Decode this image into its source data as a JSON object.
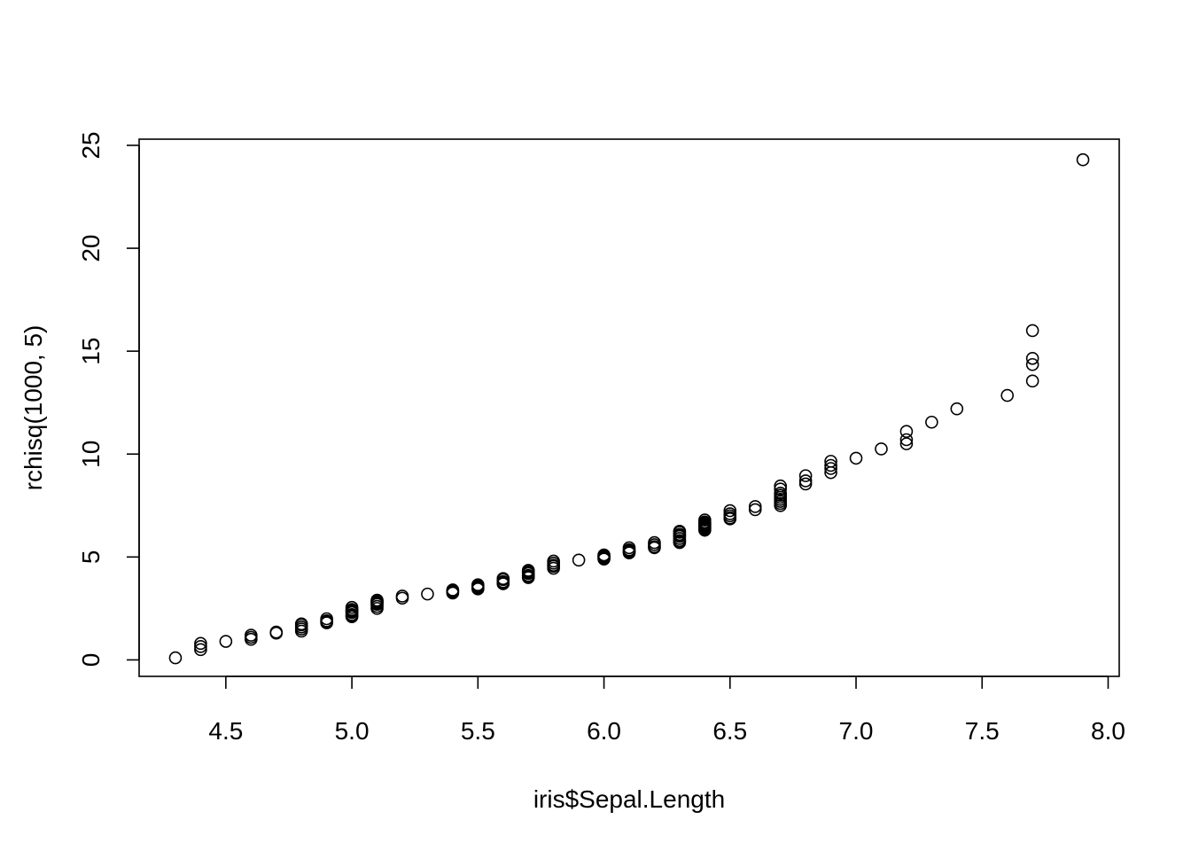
{
  "chart_data": {
    "type": "scatter",
    "title": "",
    "xlabel": "iris$Sepal.Length",
    "ylabel": "rchisq(1000, 5)",
    "xlim": [
      4.156,
      8.044
    ],
    "ylim": [
      -0.8,
      25.3
    ],
    "xticks": [
      "4.5",
      "5.0",
      "5.5",
      "6.0",
      "6.5",
      "7.0",
      "7.5",
      "8.0"
    ],
    "yticks": [
      "0",
      "5",
      "10",
      "15",
      "20",
      "25"
    ],
    "grid": false,
    "marker": "open-circle",
    "points": [
      [
        4.3,
        0.1
      ],
      [
        4.4,
        0.5
      ],
      [
        4.4,
        0.65
      ],
      [
        4.4,
        0.8
      ],
      [
        4.5,
        0.9
      ],
      [
        4.6,
        1.0
      ],
      [
        4.6,
        1.1
      ],
      [
        4.6,
        1.2
      ],
      [
        4.7,
        1.3
      ],
      [
        4.7,
        1.35
      ],
      [
        4.8,
        1.4
      ],
      [
        4.8,
        1.5
      ],
      [
        4.8,
        1.6
      ],
      [
        4.8,
        1.7
      ],
      [
        4.8,
        1.75
      ],
      [
        4.9,
        1.8
      ],
      [
        4.9,
        1.85
      ],
      [
        4.9,
        1.9
      ],
      [
        4.9,
        2.0
      ],
      [
        5.0,
        2.1
      ],
      [
        5.0,
        2.15
      ],
      [
        5.0,
        2.2
      ],
      [
        5.0,
        2.3
      ],
      [
        5.0,
        2.35
      ],
      [
        5.0,
        2.4
      ],
      [
        5.0,
        2.45
      ],
      [
        5.0,
        2.55
      ],
      [
        5.1,
        2.5
      ],
      [
        5.1,
        2.6
      ],
      [
        5.1,
        2.7
      ],
      [
        5.1,
        2.75
      ],
      [
        5.1,
        2.8
      ],
      [
        5.1,
        2.85
      ],
      [
        5.1,
        2.9
      ],
      [
        5.2,
        3.0
      ],
      [
        5.2,
        3.1
      ],
      [
        5.3,
        3.2
      ],
      [
        5.4,
        3.25
      ],
      [
        5.4,
        3.3
      ],
      [
        5.4,
        3.35
      ],
      [
        5.4,
        3.4
      ],
      [
        5.5,
        3.45
      ],
      [
        5.5,
        3.5
      ],
      [
        5.5,
        3.55
      ],
      [
        5.5,
        3.6
      ],
      [
        5.5,
        3.65
      ],
      [
        5.6,
        3.7
      ],
      [
        5.6,
        3.75
      ],
      [
        5.6,
        3.8
      ],
      [
        5.6,
        3.9
      ],
      [
        5.6,
        3.95
      ],
      [
        5.7,
        4.0
      ],
      [
        5.7,
        4.05
      ],
      [
        5.7,
        4.1
      ],
      [
        5.7,
        4.2
      ],
      [
        5.7,
        4.25
      ],
      [
        5.7,
        4.3
      ],
      [
        5.7,
        4.35
      ],
      [
        5.8,
        4.45
      ],
      [
        5.8,
        4.55
      ],
      [
        5.8,
        4.6
      ],
      [
        5.8,
        4.7
      ],
      [
        5.8,
        4.8
      ],
      [
        5.9,
        4.85
      ],
      [
        6.0,
        4.9
      ],
      [
        6.0,
        4.95
      ],
      [
        6.0,
        5.0
      ],
      [
        6.0,
        5.05
      ],
      [
        6.0,
        5.1
      ],
      [
        6.1,
        5.2
      ],
      [
        6.1,
        5.25
      ],
      [
        6.1,
        5.3
      ],
      [
        6.1,
        5.35
      ],
      [
        6.1,
        5.45
      ],
      [
        6.2,
        5.45
      ],
      [
        6.2,
        5.5
      ],
      [
        6.2,
        5.6
      ],
      [
        6.2,
        5.7
      ],
      [
        6.3,
        5.7
      ],
      [
        6.3,
        5.75
      ],
      [
        6.3,
        5.8
      ],
      [
        6.3,
        5.9
      ],
      [
        6.3,
        6.0
      ],
      [
        6.3,
        6.05
      ],
      [
        6.3,
        6.1
      ],
      [
        6.3,
        6.2
      ],
      [
        6.3,
        6.25
      ],
      [
        6.4,
        6.3
      ],
      [
        6.4,
        6.35
      ],
      [
        6.4,
        6.4
      ],
      [
        6.4,
        6.45
      ],
      [
        6.4,
        6.5
      ],
      [
        6.4,
        6.55
      ],
      [
        6.4,
        6.6
      ],
      [
        6.4,
        6.65
      ],
      [
        6.4,
        6.7
      ],
      [
        6.4,
        6.8
      ],
      [
        6.5,
        6.85
      ],
      [
        6.5,
        6.9
      ],
      [
        6.5,
        7.0
      ],
      [
        6.5,
        7.1
      ],
      [
        6.5,
        7.25
      ],
      [
        6.6,
        7.3
      ],
      [
        6.6,
        7.45
      ],
      [
        6.7,
        7.5
      ],
      [
        6.7,
        7.6
      ],
      [
        6.7,
        7.7
      ],
      [
        6.7,
        7.8
      ],
      [
        6.7,
        7.9
      ],
      [
        6.7,
        8.0
      ],
      [
        6.7,
        8.1
      ],
      [
        6.7,
        8.3
      ],
      [
        6.7,
        8.45
      ],
      [
        6.8,
        8.55
      ],
      [
        6.8,
        8.7
      ],
      [
        6.8,
        8.95
      ],
      [
        6.9,
        9.1
      ],
      [
        6.9,
        9.3
      ],
      [
        6.9,
        9.45
      ],
      [
        6.9,
        9.65
      ],
      [
        7.0,
        9.8
      ],
      [
        7.1,
        10.25
      ],
      [
        7.2,
        10.5
      ],
      [
        7.2,
        10.7
      ],
      [
        7.2,
        11.1
      ],
      [
        7.3,
        11.55
      ],
      [
        7.4,
        12.2
      ],
      [
        7.6,
        12.85
      ],
      [
        7.7,
        13.55
      ],
      [
        7.7,
        14.35
      ],
      [
        7.7,
        14.65
      ],
      [
        7.7,
        16.0
      ],
      [
        7.9,
        24.3
      ]
    ]
  }
}
